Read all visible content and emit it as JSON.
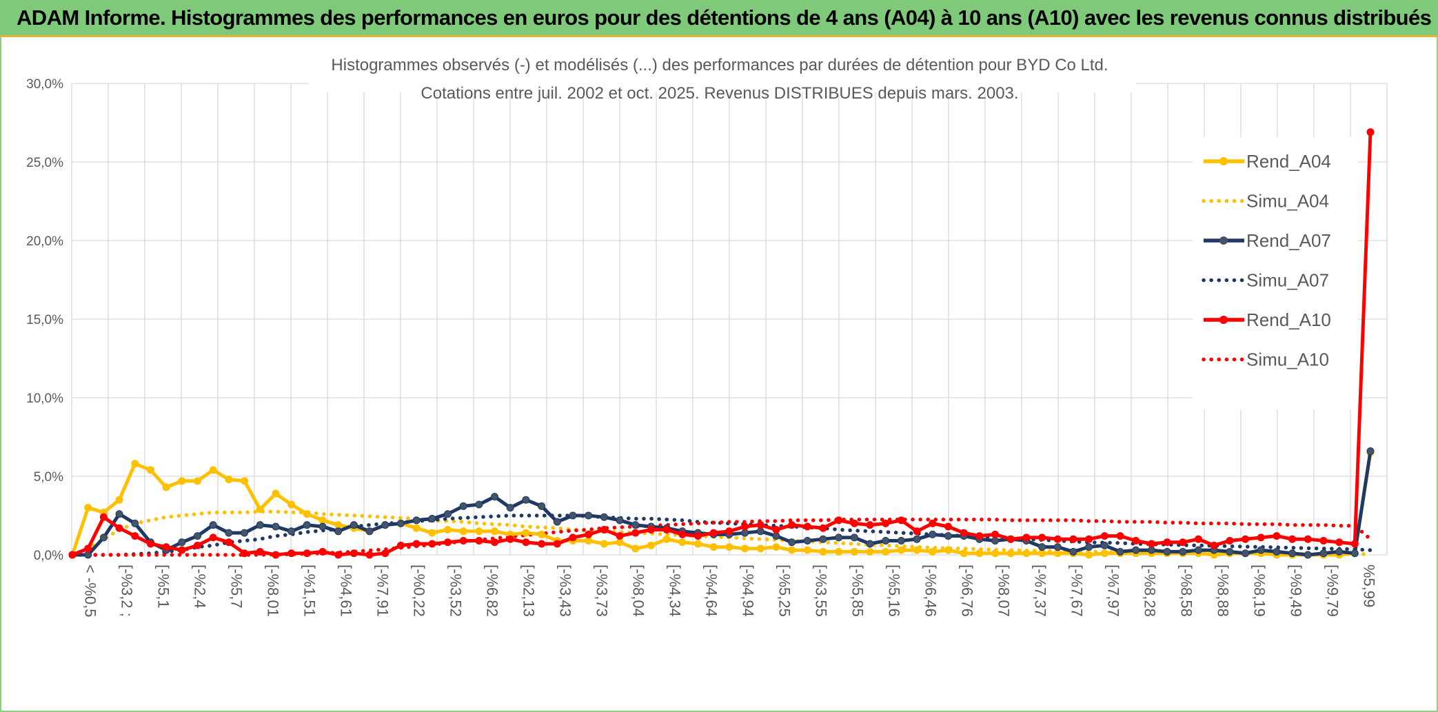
{
  "header": {
    "title": "ADAM Informe. Histogrammes des performances en euros pour des détentions de 4 ans (A04) à 10 ans (A10) avec les revenus connus distribués"
  },
  "colors": {
    "header_bg": "#7fc97a",
    "A04": "#ffc000",
    "A07": "#1f3864",
    "A10": "#ff0000",
    "grid": "#d9d9d9"
  },
  "chart_data": {
    "type": "line",
    "title": [
      "Histogrammes observés (-) et modélisés (...) des performances par durées de détention pour BYD Co Ltd.",
      "Cotations entre juil. 2002 et oct. 2025. Revenus DISTRIBUES depuis mars. 2003."
    ],
    "xlabel": "",
    "ylabel": "",
    "ylim": [
      0,
      30
    ],
    "yticks": [
      "0,0%",
      "5,0%",
      "10,0%",
      "15,0%",
      "20,0%",
      "25,0%",
      "30,0%"
    ],
    "grid": true,
    "legend_position": "right",
    "x_tick_labels": [
      "< -%0,5",
      "[-%3,2 ;",
      "[-%5,1",
      "[-%2,4",
      "[-%5,7",
      "[-%8,01",
      "[-%1,51",
      "[-%4,61",
      "[-%7,91",
      "[-%0,22",
      "[-%3,52",
      "[-%6,82",
      "[-%2,13",
      "[-%3,43",
      "[-%3,73",
      "[-%8,04",
      "[-%4,34",
      "[-%4,64",
      "[-%4,94",
      "[-%5,25",
      "[-%3,55",
      "[-%5,85",
      "[-%5,16",
      "[-%6,46",
      "[-%6,76",
      "[-%8,07",
      "[-%7,37",
      "[-%7,67",
      "[-%7,97",
      "[-%8,28",
      "[-%8,58",
      "[-%8,88",
      "[-%8,19",
      "[-%9,49",
      "[-%9,79",
      "%5,99"
    ],
    "series": [
      {
        "name": "Rend_A04",
        "style": "solid",
        "color": "#ffc000",
        "values": [
          0.0,
          3.0,
          2.7,
          3.5,
          5.8,
          5.4,
          4.3,
          4.7,
          4.7,
          5.4,
          4.8,
          4.7,
          2.9,
          3.9,
          3.2,
          2.6,
          2.2,
          1.9,
          1.7,
          1.5,
          1.9,
          2.0,
          1.7,
          1.4,
          1.6,
          1.5,
          1.5,
          1.5,
          1.3,
          1.4,
          1.3,
          0.9,
          0.9,
          0.9,
          0.7,
          0.8,
          0.4,
          0.6,
          1.0,
          0.8,
          0.7,
          0.5,
          0.5,
          0.4,
          0.4,
          0.5,
          0.3,
          0.3,
          0.2,
          0.2,
          0.2,
          0.2,
          0.2,
          0.3,
          0.3,
          0.2,
          0.3,
          0.1,
          0.1,
          0.1,
          0.1,
          0.1,
          0.1,
          0.1,
          0.1,
          0.0,
          0.1,
          0.1,
          0.1,
          0.1,
          0.1,
          0.1,
          0.1,
          0.0,
          0.1,
          0.1,
          0.1,
          0.0,
          0.0,
          0.0,
          0.0,
          0.0,
          0.1,
          6.5
        ]
      },
      {
        "name": "Simu_A04",
        "style": "dotted",
        "color": "#ffc000",
        "values": [
          0.0,
          0.4,
          1.0,
          1.6,
          2.0,
          2.2,
          2.4,
          2.5,
          2.6,
          2.7,
          2.7,
          2.7,
          2.75,
          2.75,
          2.7,
          2.7,
          2.6,
          2.55,
          2.5,
          2.45,
          2.4,
          2.35,
          2.3,
          2.2,
          2.15,
          2.1,
          2.0,
          1.95,
          1.9,
          1.8,
          1.75,
          1.7,
          1.6,
          1.55,
          1.5,
          1.45,
          1.4,
          1.35,
          1.3,
          1.25,
          1.2,
          1.15,
          1.1,
          1.05,
          1.0,
          0.95,
          0.9,
          0.85,
          0.8,
          0.75,
          0.7,
          0.65,
          0.6,
          0.55,
          0.5,
          0.45,
          0.42,
          0.4,
          0.36,
          0.33,
          0.3,
          0.28,
          0.26,
          0.24,
          0.22,
          0.2,
          0.18,
          0.17,
          0.16,
          0.14,
          0.13,
          0.12,
          0.11,
          0.1,
          0.09,
          0.08,
          0.08,
          0.07,
          0.06,
          0.06,
          0.05,
          0.05,
          0.05,
          0.05
        ]
      },
      {
        "name": "Rend_A07",
        "style": "solid",
        "color": "#1f3864",
        "values": [
          0.0,
          0.0,
          1.1,
          2.6,
          2.0,
          0.8,
          0.3,
          0.8,
          1.2,
          1.9,
          1.4,
          1.4,
          1.9,
          1.8,
          1.5,
          1.9,
          1.8,
          1.5,
          1.9,
          1.5,
          1.9,
          2.0,
          2.2,
          2.3,
          2.6,
          3.1,
          3.2,
          3.7,
          3.0,
          3.5,
          3.1,
          2.1,
          2.5,
          2.5,
          2.4,
          2.2,
          1.9,
          1.8,
          1.7,
          1.5,
          1.4,
          1.3,
          1.3,
          1.4,
          1.5,
          1.2,
          0.8,
          0.9,
          1.0,
          1.1,
          1.1,
          0.7,
          0.9,
          0.9,
          1.0,
          1.3,
          1.2,
          1.2,
          1.0,
          0.9,
          1.0,
          0.9,
          0.5,
          0.5,
          0.2,
          0.5,
          0.6,
          0.2,
          0.3,
          0.3,
          0.2,
          0.2,
          0.3,
          0.3,
          0.2,
          0.1,
          0.3,
          0.2,
          0.1,
          0.0,
          0.1,
          0.2,
          0.1,
          6.6
        ]
      },
      {
        "name": "Simu_A07",
        "style": "dotted",
        "color": "#1f3864",
        "values": [
          0.0,
          0.0,
          0.0,
          0.0,
          0.05,
          0.1,
          0.2,
          0.3,
          0.5,
          0.6,
          0.8,
          0.9,
          1.0,
          1.2,
          1.3,
          1.45,
          1.55,
          1.65,
          1.8,
          1.9,
          2.0,
          2.05,
          2.15,
          2.2,
          2.3,
          2.35,
          2.4,
          2.45,
          2.5,
          2.5,
          2.5,
          2.5,
          2.5,
          2.45,
          2.4,
          2.35,
          2.3,
          2.3,
          2.25,
          2.2,
          2.1,
          2.05,
          2.0,
          1.95,
          1.9,
          1.85,
          1.8,
          1.75,
          1.7,
          1.6,
          1.55,
          1.5,
          1.45,
          1.4,
          1.35,
          1.3,
          1.25,
          1.2,
          1.15,
          1.1,
          1.05,
          1.0,
          0.95,
          0.9,
          0.85,
          0.8,
          0.78,
          0.75,
          0.7,
          0.68,
          0.65,
          0.62,
          0.6,
          0.58,
          0.55,
          0.52,
          0.5,
          0.48,
          0.45,
          0.42,
          0.4,
          0.38,
          0.35,
          0.3
        ]
      },
      {
        "name": "Rend_A10",
        "style": "solid",
        "color": "#ff0000",
        "values": [
          0.0,
          0.4,
          2.4,
          1.7,
          1.2,
          0.7,
          0.5,
          0.3,
          0.6,
          1.1,
          0.8,
          0.1,
          0.2,
          0.0,
          0.1,
          0.1,
          0.2,
          0.0,
          0.1,
          0.0,
          0.1,
          0.6,
          0.7,
          0.7,
          0.8,
          0.9,
          0.9,
          0.8,
          1.0,
          0.8,
          0.7,
          0.7,
          1.1,
          1.3,
          1.6,
          1.2,
          1.4,
          1.6,
          1.6,
          1.3,
          1.2,
          1.4,
          1.5,
          1.8,
          1.9,
          1.6,
          1.9,
          1.8,
          1.7,
          2.2,
          2.0,
          1.9,
          2.0,
          2.2,
          1.5,
          2.0,
          1.8,
          1.4,
          1.2,
          1.3,
          1.0,
          1.1,
          1.1,
          1.0,
          1.0,
          1.0,
          1.2,
          1.2,
          0.9,
          0.7,
          0.8,
          0.8,
          1.0,
          0.6,
          0.9,
          1.0,
          1.1,
          1.2,
          1.0,
          1.0,
          0.9,
          0.8,
          0.7,
          26.9
        ]
      },
      {
        "name": "Simu_A10",
        "style": "dotted",
        "color": "#ff0000",
        "values": [
          0.0,
          0.0,
          0.0,
          0.0,
          0.0,
          0.0,
          0.0,
          0.0,
          0.0,
          0.0,
          0.0,
          0.0,
          0.0,
          0.02,
          0.04,
          0.07,
          0.1,
          0.15,
          0.2,
          0.28,
          0.35,
          0.45,
          0.55,
          0.65,
          0.75,
          0.85,
          0.95,
          1.05,
          1.15,
          1.25,
          1.35,
          1.45,
          1.55,
          1.6,
          1.7,
          1.75,
          1.8,
          1.85,
          1.9,
          1.95,
          2.0,
          2.05,
          2.1,
          2.1,
          2.15,
          2.15,
          2.2,
          2.2,
          2.2,
          2.25,
          2.25,
          2.25,
          2.25,
          2.25,
          2.25,
          2.25,
          2.25,
          2.25,
          2.25,
          2.25,
          2.2,
          2.2,
          2.2,
          2.2,
          2.2,
          2.15,
          2.15,
          2.1,
          2.1,
          2.1,
          2.05,
          2.05,
          2.0,
          2.0,
          2.0,
          1.95,
          1.95,
          1.95,
          1.9,
          1.9,
          1.9,
          1.85,
          1.85,
          1.0
        ]
      }
    ]
  }
}
